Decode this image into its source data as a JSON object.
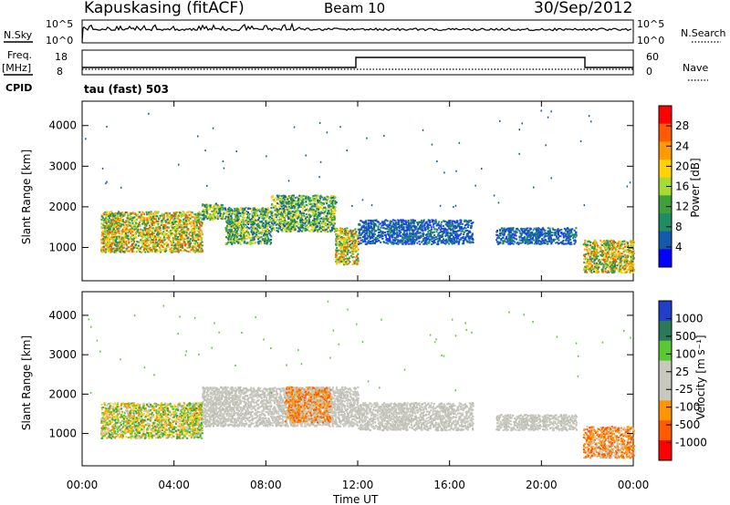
{
  "header": {
    "station": "Kapuskasing (fitACF)",
    "beam": "Beam 10",
    "date": "30/Sep/2012"
  },
  "strip": {
    "nsky_label": "N.Sky",
    "nsearch_label": "N.Search",
    "freq_label": "Freq.",
    "freq_unit": "[MHz]",
    "nave_label": "Nave",
    "cpid_label": "CPID",
    "cpid_value": "tau (fast) 503",
    "nsky_ticks": [
      "10^5",
      "10^0"
    ],
    "nsearch_ticks": [
      "10^5",
      "10^0"
    ],
    "freq_ticks": [
      "18",
      "8"
    ],
    "nave_ticks": [
      "60",
      "0"
    ]
  },
  "axes": {
    "ylabel": "Slant Range [km]",
    "xlabel": "Time UT",
    "yticks": [
      "4000",
      "3000",
      "2000",
      "1000"
    ],
    "xticks": [
      "00:00",
      "04:00",
      "08:00",
      "12:00",
      "16:00",
      "20:00",
      "00:00"
    ]
  },
  "power_bar": {
    "label": "Power [dB]",
    "ticks": [
      "28",
      "24",
      "20",
      "16",
      "12",
      "8",
      "4"
    ],
    "colors": [
      "#ff0000",
      "#ff5a00",
      "#ff9a00",
      "#ffd200",
      "#a6dc32",
      "#3ca03c",
      "#1e8c64",
      "#145aaa",
      "#0000ff"
    ]
  },
  "velocity_bar": {
    "label": "Velocity [m s⁻¹]",
    "ticks": [
      "1000",
      "500",
      "100",
      "25",
      "-25",
      "-100",
      "-500",
      "-1000"
    ],
    "colors": [
      "#2040c8",
      "#2a7a5a",
      "#5ac832",
      "#c8c8be",
      "#c8c8be",
      "#ff9600",
      "#ff5a00",
      "#ff0000"
    ]
  },
  "chart_data": [
    {
      "type": "heatmap",
      "title": "Power",
      "xlabel": "Time UT",
      "ylabel": "Slant Range [km]",
      "ylim": [
        180,
        4600
      ],
      "xlim": [
        0,
        24
      ],
      "regions": [
        {
          "x": [
            0.8,
            5.2
          ],
          "y": [
            900,
            1900
          ],
          "level": "high"
        },
        {
          "x": [
            5.2,
            6.2
          ],
          "y": [
            1700,
            2100
          ],
          "level": "mid"
        },
        {
          "x": [
            6.2,
            8.2
          ],
          "y": [
            1100,
            2000
          ],
          "level": "mid"
        },
        {
          "x": [
            8.2,
            11.0
          ],
          "y": [
            1400,
            2300
          ],
          "level": "mid"
        },
        {
          "x": [
            11.0,
            12.0
          ],
          "y": [
            600,
            1500
          ],
          "level": "high"
        },
        {
          "x": [
            12.0,
            17.0
          ],
          "y": [
            1100,
            1700
          ],
          "level": "low"
        },
        {
          "x": [
            18.0,
            21.5
          ],
          "y": [
            1100,
            1500
          ],
          "level": "low"
        },
        {
          "x": [
            21.8,
            24.0
          ],
          "y": [
            400,
            1200
          ],
          "level": "high"
        }
      ]
    },
    {
      "type": "heatmap",
      "title": "Velocity",
      "xlabel": "Time UT",
      "ylabel": "Slant Range [km]",
      "ylim": [
        180,
        4600
      ],
      "xlim": [
        0,
        24
      ],
      "regions": [
        {
          "x": [
            0.8,
            5.2
          ],
          "y": [
            900,
            1800
          ],
          "level": "mixed-green-orange"
        },
        {
          "x": [
            5.2,
            12.0
          ],
          "y": [
            1200,
            2200
          ],
          "level": "grey-ground-scatter"
        },
        {
          "x": [
            8.8,
            10.8
          ],
          "y": [
            1300,
            2200
          ],
          "level": "orange"
        },
        {
          "x": [
            12.0,
            17.0
          ],
          "y": [
            1100,
            1800
          ],
          "level": "grey-ground-scatter"
        },
        {
          "x": [
            18.0,
            21.5
          ],
          "y": [
            1100,
            1500
          ],
          "level": "grey-ground-scatter"
        },
        {
          "x": [
            21.8,
            24.0
          ],
          "y": [
            400,
            1200
          ],
          "level": "orange"
        }
      ]
    }
  ]
}
